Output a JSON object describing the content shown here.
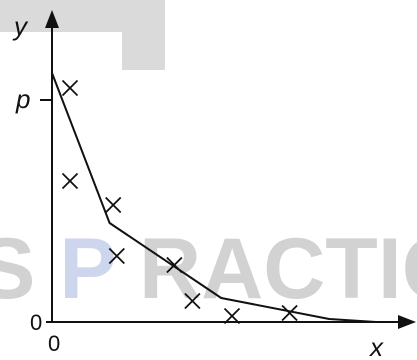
{
  "chart_data": {
    "type": "scatter",
    "xlabel": "x",
    "ylabel": "y",
    "y_intercept_label": "p",
    "origin_labels": {
      "x": "0",
      "y": "0"
    },
    "xlim": [
      0,
      10
    ],
    "ylim": [
      0,
      10
    ],
    "grid": false,
    "points": [
      {
        "x": 0.5,
        "y": 7.8
      },
      {
        "x": 0.5,
        "y": 4.7
      },
      {
        "x": 1.7,
        "y": 3.9
      },
      {
        "x": 1.8,
        "y": 2.2
      },
      {
        "x": 3.4,
        "y": 1.9
      },
      {
        "x": 3.9,
        "y": 0.7
      },
      {
        "x": 5.0,
        "y": 0.2
      },
      {
        "x": 6.6,
        "y": 0.3
      }
    ],
    "curve": [
      {
        "x": 0.0,
        "y": 8.3
      },
      {
        "x": 1.6,
        "y": 3.3
      },
      {
        "x": 4.7,
        "y": 0.8
      },
      {
        "x": 7.7,
        "y": 0.1
      },
      {
        "x": 9.0,
        "y": 0.0
      }
    ],
    "watermark": "S PRACTIC",
    "colors": {
      "ink": "#111111",
      "watermark_gray": "#d2d2d2",
      "watermark_blue": "#cdd6ec"
    }
  }
}
